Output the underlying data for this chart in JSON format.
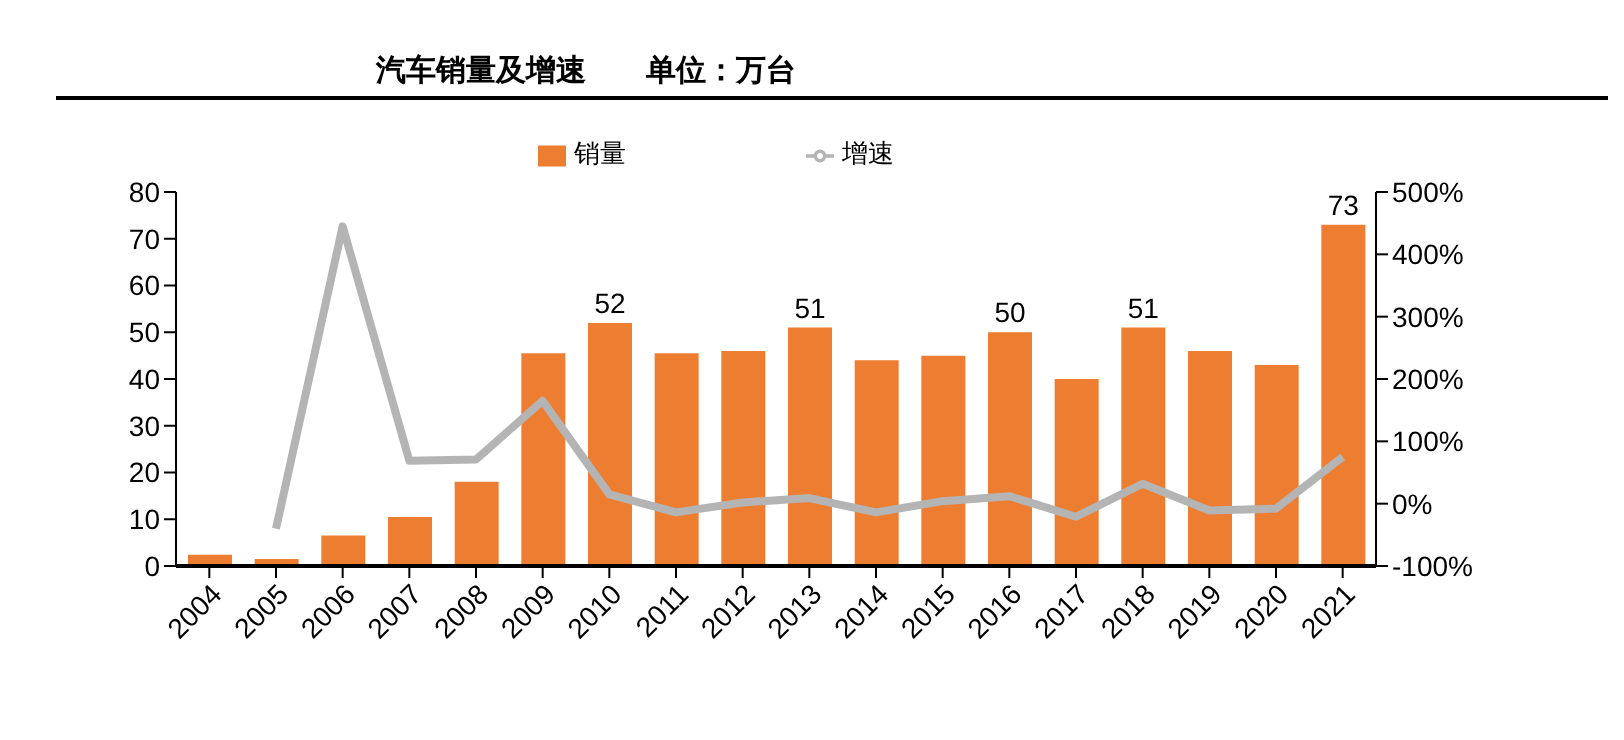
{
  "chart_data": {
    "type": "bar",
    "title": "汽车销量及增速",
    "subtitle": "单位：万台",
    "categories": [
      "2004",
      "2005",
      "2006",
      "2007",
      "2008",
      "2009",
      "2010",
      "2011",
      "2012",
      "2013",
      "2014",
      "2015",
      "2016",
      "2017",
      "2018",
      "2019",
      "2020",
      "2021"
    ],
    "series": [
      {
        "name": "销量",
        "color": "#ed7d31",
        "values": [
          2.4,
          1.5,
          6.5,
          10.5,
          18,
          45.5,
          52,
          45.5,
          46,
          51,
          44,
          45,
          50,
          40,
          51,
          46,
          43,
          73
        ],
        "value_labels": [
          null,
          null,
          null,
          null,
          null,
          null,
          "52",
          null,
          null,
          "51",
          null,
          null,
          "50",
          null,
          "51",
          null,
          null,
          "73"
        ]
      },
      {
        "name": "增速",
        "type": "line",
        "axis": "y2",
        "color": "#b4b4b4",
        "values": [
          null,
          -40,
          445,
          69,
          71,
          165,
          15,
          -14,
          2,
          9,
          -14,
          4,
          12,
          -21,
          32,
          -11,
          -8,
          75
        ]
      }
    ],
    "ylim": [
      0,
      80
    ],
    "yticks": [
      0,
      10,
      20,
      30,
      40,
      50,
      60,
      70,
      80
    ],
    "y2lim": [
      -100,
      500
    ],
    "y2ticks": [
      {
        "value": -100,
        "label": "-100%"
      },
      {
        "value": 0,
        "label": "0%"
      },
      {
        "value": 100,
        "label": "100%"
      },
      {
        "value": 200,
        "label": "200%"
      },
      {
        "value": 300,
        "label": "300%"
      },
      {
        "value": 400,
        "label": "400%"
      },
      {
        "value": 500,
        "label": "500%"
      }
    ],
    "legend": "top",
    "grid": false,
    "marker": "none"
  }
}
